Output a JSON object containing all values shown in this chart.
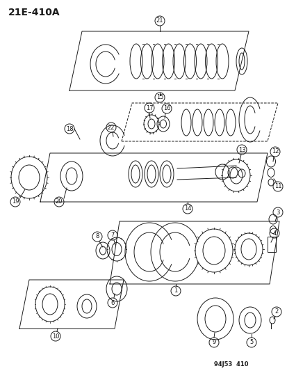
{
  "title": "21E-410A",
  "footer": "94J53  410",
  "bg_color": "#ffffff",
  "fg_color": "#1a1a1a",
  "lw": 0.7
}
